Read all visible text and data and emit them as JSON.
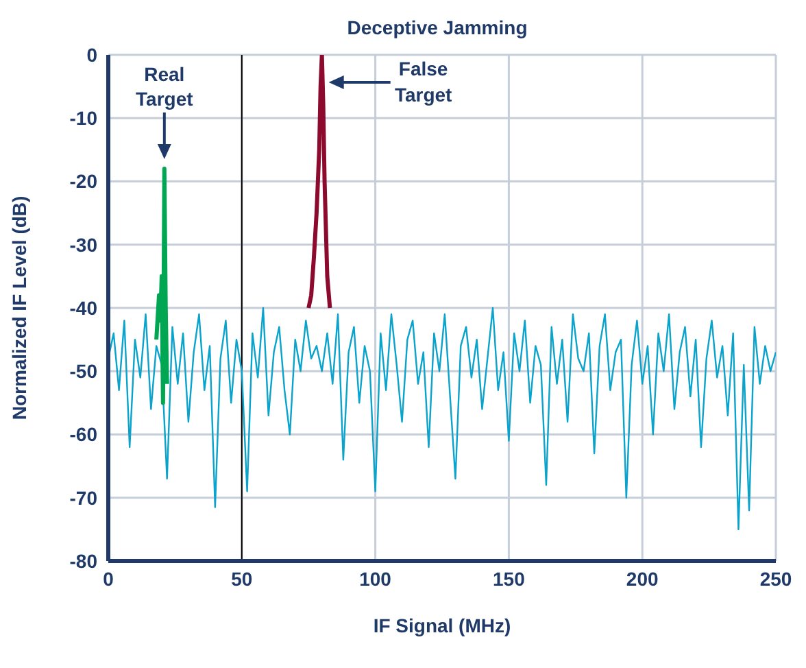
{
  "chart_data": {
    "type": "line",
    "title": "Deceptive Jamming",
    "xlabel": "IF Signal (MHz)",
    "ylabel": "Normalized IF Level (dB)",
    "series": [
      {
        "color": "#0aa3cc",
        "x": [
          0,
          2,
          4,
          6,
          8,
          10,
          12,
          14,
          16,
          18,
          20,
          22,
          24,
          26,
          28,
          30,
          32,
          34,
          36,
          38,
          40,
          42,
          44,
          46,
          48,
          50,
          52,
          54,
          56,
          58,
          60,
          62,
          64,
          66,
          68,
          70,
          72,
          74,
          76,
          78,
          80,
          82,
          84,
          86,
          88,
          90,
          92,
          94,
          96,
          98,
          100,
          102,
          104,
          106,
          108,
          110,
          112,
          114,
          116,
          118,
          120,
          122,
          124,
          126,
          128,
          130,
          132,
          134,
          136,
          138,
          140,
          142,
          144,
          146,
          148,
          150,
          152,
          154,
          156,
          158,
          160,
          162,
          164,
          166,
          168,
          170,
          172,
          174,
          176,
          178,
          180,
          182,
          184,
          186,
          188,
          190,
          192,
          194,
          196,
          198,
          200,
          202,
          204,
          206,
          208,
          210,
          212,
          214,
          216,
          218,
          220,
          222,
          224,
          226,
          228,
          230,
          232,
          234,
          236,
          238,
          240,
          242,
          244,
          246,
          248,
          250
        ],
        "values": [
          -48,
          -44,
          -53,
          -42,
          -62,
          -45,
          -51,
          -41,
          -56,
          -46,
          -49,
          -67,
          -43,
          -52,
          -44,
          -58,
          -47,
          -41,
          -53,
          -46,
          -71.5,
          -48,
          -42,
          -55,
          -45,
          -50,
          -69,
          -44,
          -51,
          -40,
          -57,
          -47,
          -43,
          -53,
          -60,
          -45,
          -50,
          -42,
          -48,
          -46,
          -50,
          -44,
          -52,
          -41,
          -64,
          -47,
          -43,
          -55,
          -46,
          -50,
          -69,
          -44,
          -53,
          -41,
          -49,
          -58,
          -45,
          -42,
          -52,
          -47,
          -62,
          -44,
          -50,
          -41,
          -54,
          -67,
          -46,
          -43,
          -51,
          -45,
          -56,
          -48,
          -40,
          -53,
          -47,
          -61,
          -44,
          -50,
          -42,
          -55,
          -46,
          -49,
          -68,
          -43,
          -52,
          -45,
          -58,
          -41,
          -48,
          -50,
          -44,
          -63,
          -46,
          -41,
          -53,
          -47,
          -45,
          -70,
          -49,
          -42,
          -52,
          -46,
          -60,
          -44,
          -50,
          -41,
          -56,
          -47,
          -43,
          -54,
          -45,
          -62,
          -48,
          -42,
          -51,
          -46,
          -57,
          -44,
          -75,
          -49,
          -72,
          -43,
          -52,
          -46,
          -50,
          -47
        ]
      },
      {
        "color": "#00a651",
        "x": [
          18,
          19,
          19.5,
          20,
          20.5,
          21,
          21.5,
          22
        ],
        "values": [
          -45,
          -38,
          -42,
          -35,
          -55,
          -18,
          -40,
          -52
        ]
      },
      {
        "color": "#8b0a2e",
        "x": [
          75,
          76,
          77,
          78,
          79,
          79.5,
          80,
          80.5,
          81,
          82,
          83
        ],
        "values": [
          -40,
          -38,
          -32,
          -25,
          -15,
          -5,
          0,
          -8,
          -20,
          -35,
          -40
        ]
      }
    ],
    "xlim": [
      0,
      250
    ],
    "xticks": [
      0,
      50,
      100,
      150,
      200,
      250
    ],
    "ylim": [
      -80,
      0
    ],
    "yticks": [
      -80,
      -70,
      -60,
      -50,
      -40,
      -30,
      -20,
      -10,
      0
    ],
    "grid": true,
    "legend": false,
    "marker": "none",
    "line_style": "solid",
    "ref_lines": [
      {
        "axis": "x",
        "value": 50,
        "color": "#000000"
      }
    ],
    "annotations": [
      "Real Target",
      "False Target"
    ]
  }
}
